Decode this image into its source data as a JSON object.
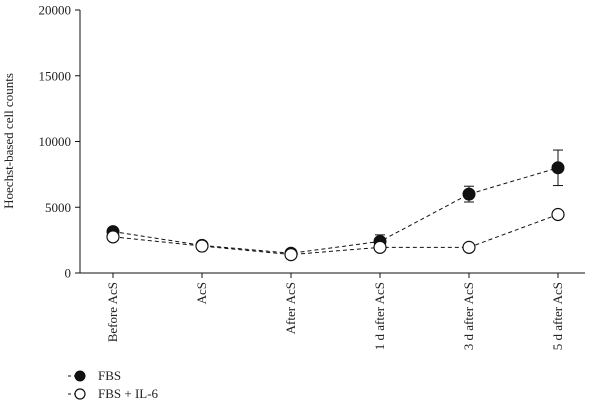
{
  "chart_data": {
    "type": "line",
    "title": "",
    "xlabel": "",
    "ylabel": "Hoechst-based cell counts",
    "ylim": [
      0,
      20000
    ],
    "yticks": [
      "0",
      "5000",
      "10000",
      "15000",
      "20000"
    ],
    "categories": [
      "Before AcS",
      "AcS",
      "After AcS",
      "1 d after AcS",
      "3 d after AcS",
      "5 d after AcS"
    ],
    "grid": false,
    "legend_position": "bottom-left",
    "series": [
      {
        "name": "FBS",
        "marker": "filled-circle",
        "line_style": "dashed",
        "color": "#111111",
        "values": [
          3150,
          2100,
          1500,
          2400,
          6000,
          8000
        ],
        "errors": [
          250,
          150,
          150,
          500,
          600,
          1350
        ]
      },
      {
        "name": "FBS + IL-6",
        "marker": "open-circle",
        "line_style": "dashed",
        "color": "#111111",
        "values": [
          2750,
          2050,
          1400,
          1950,
          1950,
          4450
        ],
        "errors": [
          150,
          120,
          100,
          200,
          250,
          300
        ]
      }
    ]
  }
}
